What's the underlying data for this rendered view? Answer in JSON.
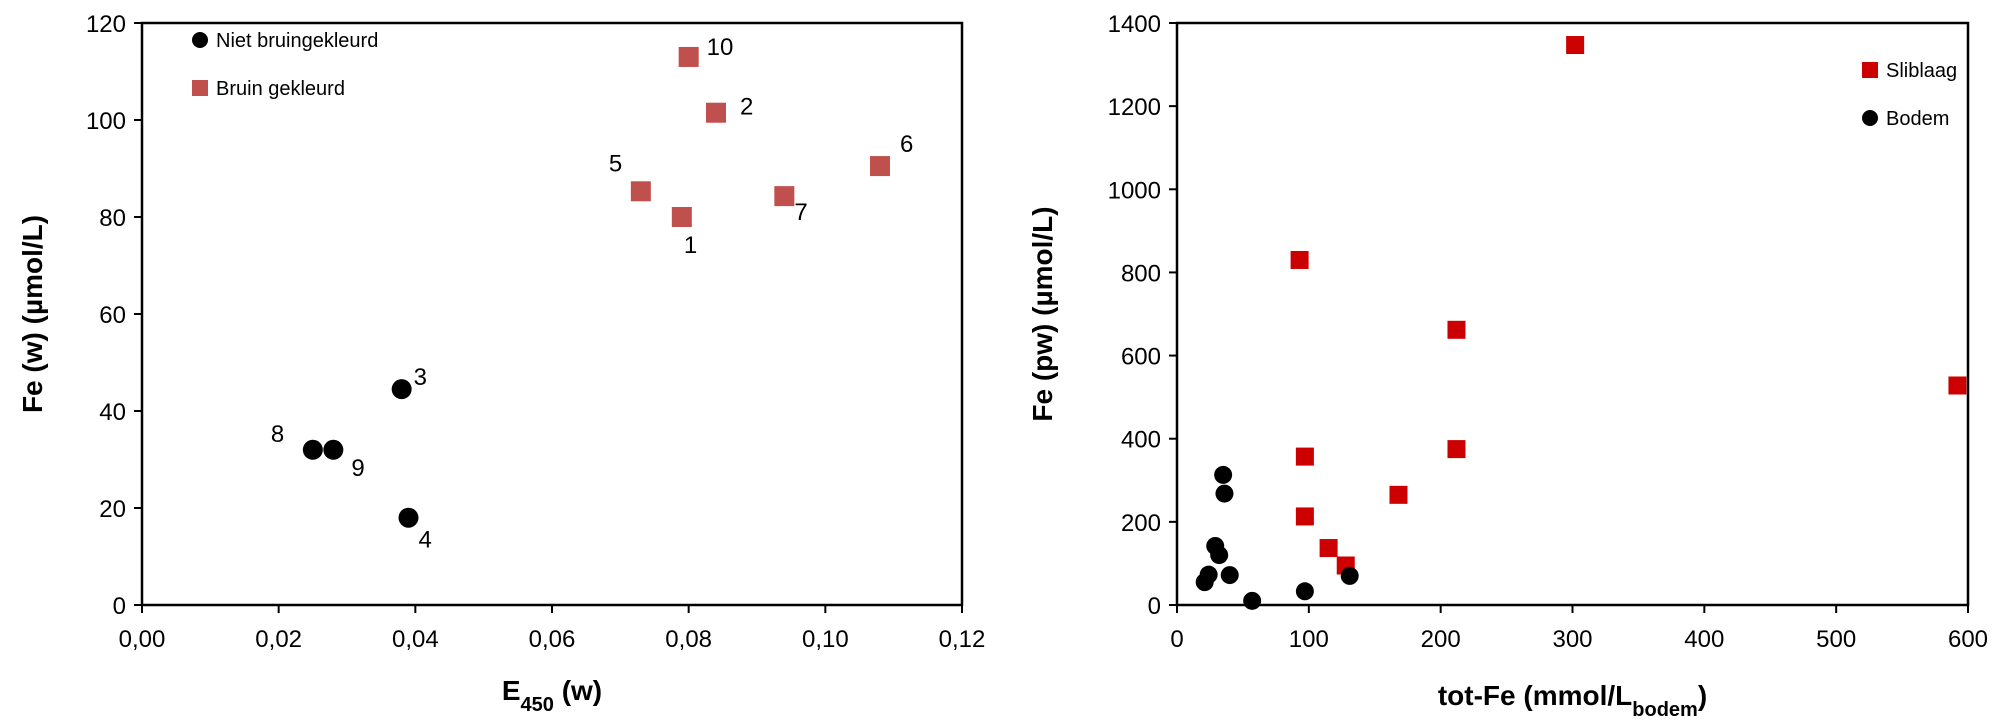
{
  "chart_data": [
    {
      "type": "scatter",
      "xlabel": {
        "main": "E",
        "sub": "450",
        "tail": " (w)"
      },
      "ylabel": "Fe (w)  (µmol/L)",
      "xlim": [
        0,
        0.12
      ],
      "ylim": [
        0,
        120
      ],
      "grid": false,
      "legend_position": "top-left",
      "x_ticks": [
        "0,00",
        "0,02",
        "0,04",
        "0,06",
        "0,08",
        "0,10",
        "0,12"
      ],
      "y_ticks": [
        "0",
        "20",
        "40",
        "60",
        "80",
        "100",
        "120"
      ],
      "series": [
        {
          "name": "Niet bruingekleurd",
          "marker": "circle",
          "color": "#000000",
          "points": [
            {
              "x": 0.038,
              "y": 44.5,
              "label": "3"
            },
            {
              "x": 0.025,
              "y": 32,
              "label": "8"
            },
            {
              "x": 0.028,
              "y": 32,
              "label": "9"
            },
            {
              "x": 0.039,
              "y": 18,
              "label": "4"
            }
          ]
        },
        {
          "name": "Bruin gekleurd",
          "marker": "square",
          "color": "#c0504d",
          "points": [
            {
              "x": 0.08,
              "y": 113,
              "label": "10"
            },
            {
              "x": 0.084,
              "y": 101.5,
              "label": "2"
            },
            {
              "x": 0.108,
              "y": 90.5,
              "label": "6"
            },
            {
              "x": 0.073,
              "y": 85.3,
              "label": "5"
            },
            {
              "x": 0.094,
              "y": 84.3,
              "label": "7"
            },
            {
              "x": 0.079,
              "y": 80,
              "label": "1"
            }
          ]
        }
      ]
    },
    {
      "type": "scatter",
      "xlabel": {
        "main": "tot-Fe (mmol/L",
        "sub": "bodem",
        "tail": ")"
      },
      "ylabel": "Fe  (pw) (µmol/L)",
      "xlim": [
        0,
        600
      ],
      "ylim": [
        0,
        1400
      ],
      "grid": false,
      "legend_position": "top-right",
      "x_ticks": [
        "0",
        "100",
        "200",
        "300",
        "400",
        "500",
        "600"
      ],
      "y_ticks": [
        "0",
        "200",
        "400",
        "600",
        "800",
        "1000",
        "1200",
        "1400"
      ],
      "series": [
        {
          "name": "Sliblaag",
          "marker": "square",
          "color": "#cc0000",
          "points": [
            {
              "x": 302,
              "y": 1347
            },
            {
              "x": 93,
              "y": 830
            },
            {
              "x": 212,
              "y": 662
            },
            {
              "x": 592,
              "y": 528
            },
            {
              "x": 212,
              "y": 375
            },
            {
              "x": 97,
              "y": 357
            },
            {
              "x": 168,
              "y": 265
            },
            {
              "x": 97,
              "y": 213
            },
            {
              "x": 115,
              "y": 137
            },
            {
              "x": 128,
              "y": 95
            }
          ]
        },
        {
          "name": "Bodem",
          "marker": "circle",
          "color": "#000000",
          "points": [
            {
              "x": 35,
              "y": 313
            },
            {
              "x": 36,
              "y": 268
            },
            {
              "x": 29,
              "y": 142
            },
            {
              "x": 32,
              "y": 120
            },
            {
              "x": 24,
              "y": 73
            },
            {
              "x": 40,
              "y": 72
            },
            {
              "x": 21,
              "y": 55
            },
            {
              "x": 57,
              "y": 10
            },
            {
              "x": 97,
              "y": 33
            },
            {
              "x": 131,
              "y": 70
            }
          ]
        }
      ]
    }
  ]
}
